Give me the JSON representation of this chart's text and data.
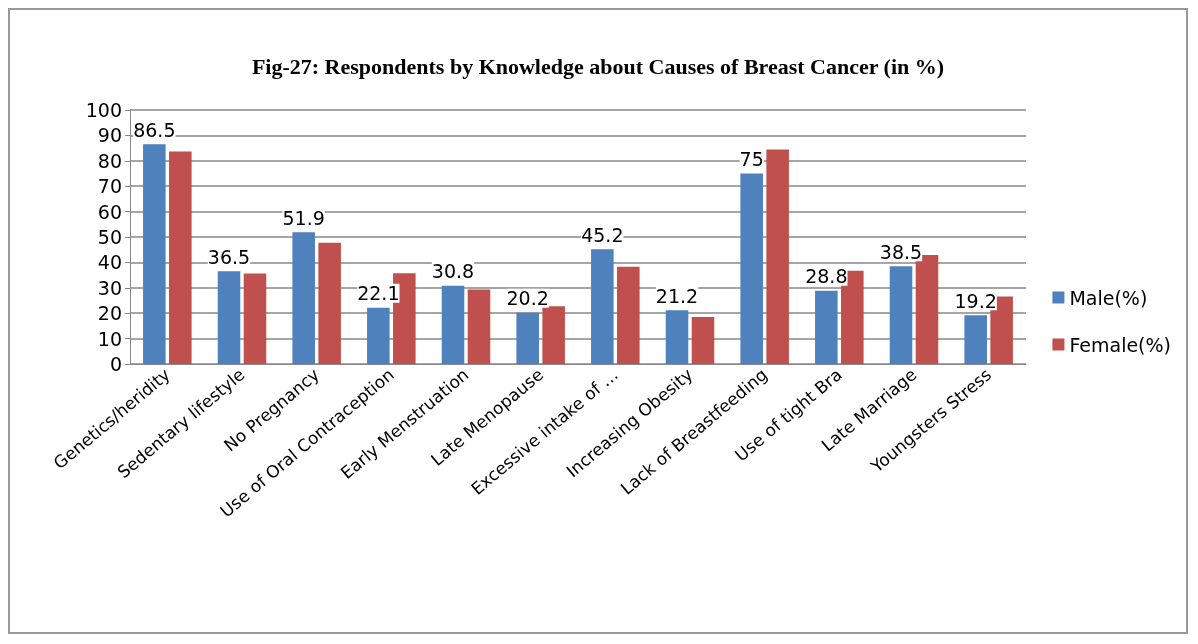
{
  "chart_data": {
    "type": "bar",
    "title": "Fig-27: Respondents by Knowledge about Causes of Breast Cancer (in %)",
    "categories": [
      "Genetics/heridity",
      "Sedentary lifestyle",
      "No Pregnancy",
      "Use of Oral Contraception",
      "Early Menstruation",
      "Late Menopause",
      "Excessive intake of …",
      "Increasing Obesity",
      "Lack of Breastfeeding",
      "Use of tight Bra",
      "Late Marriage",
      "Youngsters Stress"
    ],
    "series": [
      {
        "name": "Male(%)",
        "color": "#4f81bd",
        "values": [
          86.5,
          36.5,
          51.9,
          22.1,
          30.8,
          20.2,
          45.2,
          21.2,
          75,
          28.8,
          38.5,
          19.2
        ],
        "value_labels": [
          "86.5",
          "36.5",
          "51.9",
          "22.1",
          "30.8",
          "20.2",
          "45.2",
          "21.2",
          "75",
          "28.8",
          "38.5",
          "19.2"
        ]
      },
      {
        "name": "Female(%)",
        "color": "#c0504d",
        "values": [
          83.7,
          35.6,
          47.7,
          35.7,
          29.3,
          22.7,
          38.3,
          18.5,
          84.4,
          36.7,
          42.9,
          26.6
        ]
      }
    ],
    "ylim": [
      0,
      100
    ],
    "yticks": [
      0,
      10,
      20,
      30,
      40,
      50,
      60,
      70,
      80,
      90,
      100
    ],
    "grid": "y",
    "legend": "right"
  }
}
